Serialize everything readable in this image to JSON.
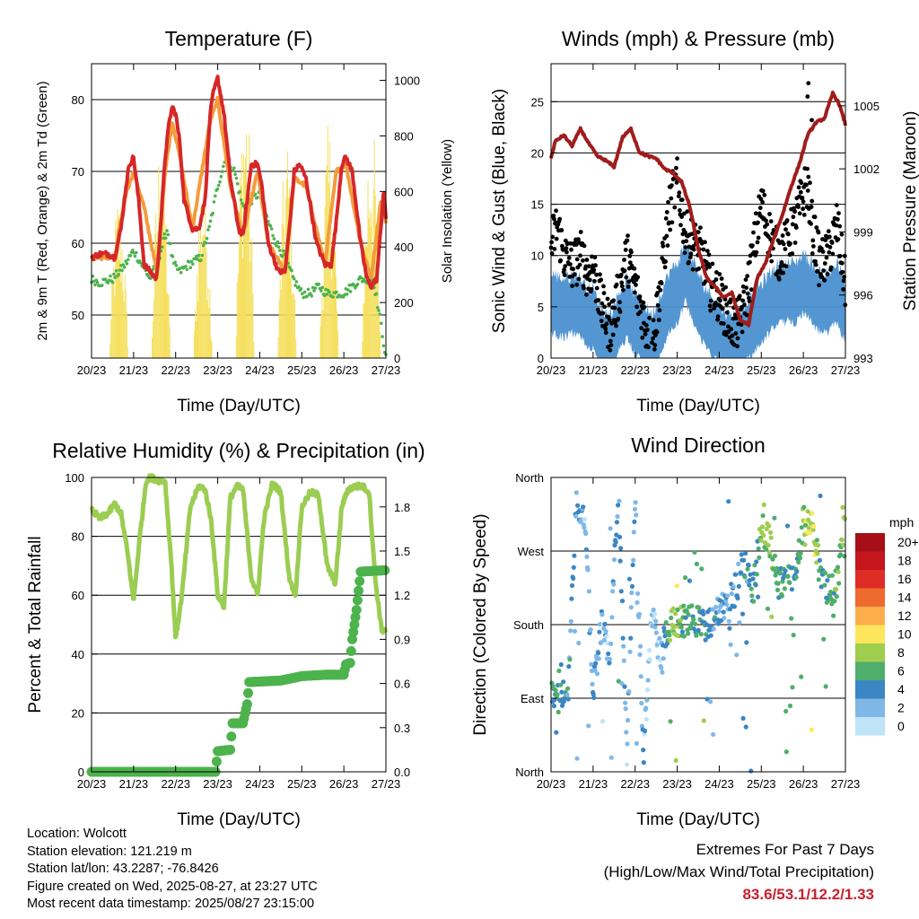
{
  "panels": {
    "temperature": {
      "title": "Temperature (F)",
      "ylabel_left": "2m & 9m T (Red, Orange) & 2m Td (Green)",
      "ylabel_right": "Solar Insolation (Yellow)",
      "xlabel": "Time (Day/UTC)"
    },
    "winds": {
      "title": "Winds (mph) & Pressure (mb)",
      "ylabel_left": "Sonic Wind & Gust (Blue, Black)",
      "ylabel_right": "Station Pressure (Maroon)",
      "xlabel": "Time (Day/UTC)"
    },
    "humidity": {
      "title": "Relative Humidity (%) & Precipitation (in)",
      "ylabel_left": "Percent & Total Rainfall",
      "xlabel": "Time (Day/UTC)"
    },
    "wind_direction": {
      "title": "Wind Direction",
      "ylabel_left": "Direction (Colored By Speed)",
      "xlabel": "Time (Day/UTC)",
      "legend_title": "mph"
    }
  },
  "info": {
    "location": "Location: Wolcott",
    "elevation": "Station elevation: 121.219 m",
    "latlon": "Station lat/lon: 43.2287; -76.8426",
    "created": "Figure created on Wed, 2025-08-27, at 23:27 UTC",
    "recent": "Most recent data timestamp: 2025/08/27 23:15:00"
  },
  "extremes": {
    "heading": "Extremes For Past 7 Days",
    "subheading": "(High/Low/Max Wind/Total Precipitation)",
    "values": "83.6/53.1/12.2/1.33"
  },
  "colors": {
    "temp_2m": "#d62728",
    "temp_9m": "#f39c3c",
    "dewpoint": "#4db34d",
    "solar": "#f5df5a",
    "wind": "#4a90d0",
    "gust": "#000000",
    "pressure": "#a01c1c",
    "rh": "#9acd52",
    "rain": "#4db34d"
  },
  "chart_data": [
    {
      "type": "line",
      "title": "Temperature (F)",
      "xlabel": "Time (Day/UTC)",
      "ylabel": "2m & 9m T (Red, Orange) & 2m Td (Green)",
      "y2label": "Solar Insolation (Yellow)",
      "x_ticks": [
        "20/23",
        "21/23",
        "22/23",
        "23/23",
        "24/23",
        "25/23",
        "26/23",
        "27/23"
      ],
      "xlim": [
        0,
        7
      ],
      "ylim": [
        44,
        85
      ],
      "y_ticks": [
        50,
        60,
        70,
        80
      ],
      "y2lim": [
        0,
        1060
      ],
      "y2_ticks": [
        0,
        200,
        400,
        600,
        800,
        1000
      ],
      "grid": "horizontal",
      "series": [
        {
          "name": "2m T",
          "color": "#d62728",
          "x": [
            0,
            0.2,
            0.4,
            0.55,
            0.7,
            0.82,
            0.9,
            1.0,
            1.12,
            1.25,
            1.4,
            1.55,
            1.65,
            1.75,
            1.85,
            1.92,
            2.0,
            2.1,
            2.2,
            2.4,
            2.55,
            2.7,
            2.82,
            2.9,
            3.0,
            3.15,
            3.3,
            3.5,
            3.6,
            3.7,
            3.8,
            3.95,
            4.05,
            4.2,
            4.45,
            4.6,
            4.72,
            4.82,
            4.95,
            5.1,
            5.35,
            5.55,
            5.7,
            5.82,
            5.95,
            6.05,
            6.2,
            6.4,
            6.55,
            6.65,
            6.78,
            6.88,
            6.95,
            7.0
          ],
          "y": [
            58,
            58.5,
            58.5,
            58,
            62,
            68,
            71,
            72,
            66,
            57,
            56,
            55,
            63,
            72,
            77,
            79,
            78,
            74,
            66,
            62,
            62,
            66,
            78,
            81,
            83,
            78,
            69,
            62,
            61,
            66,
            71,
            71,
            68,
            60,
            56,
            56,
            63,
            70,
            71,
            69,
            60,
            57,
            57,
            63,
            71,
            72,
            70,
            60,
            55,
            54,
            55,
            62,
            68,
            63
          ]
        },
        {
          "name": "9m T",
          "color": "#f39c3c",
          "x": [
            0,
            0.55,
            0.82,
            1.0,
            1.25,
            1.55,
            1.75,
            1.92,
            2.1,
            2.4,
            2.82,
            3.0,
            3.3,
            3.6,
            3.95,
            4.2,
            4.6,
            4.82,
            5.1,
            5.55,
            5.82,
            6.05,
            6.4,
            6.65,
            6.88,
            7.0
          ],
          "y": [
            58,
            58,
            67,
            70,
            65,
            56,
            70,
            77,
            72,
            62,
            77,
            80,
            68,
            61,
            70,
            60,
            56,
            69,
            68,
            57,
            70,
            71,
            60,
            55,
            66,
            63
          ]
        },
        {
          "name": "2m Td",
          "color": "#4db34d",
          "x": [
            0,
            0.2,
            0.5,
            0.8,
            1.0,
            1.2,
            1.4,
            1.6,
            1.8,
            1.95,
            2.1,
            2.3,
            2.6,
            2.8,
            3.0,
            3.2,
            3.4,
            3.6,
            3.8,
            4.0,
            4.2,
            4.4,
            4.6,
            4.8,
            5.0,
            5.2,
            5.4,
            5.6,
            5.8,
            6.0,
            6.2,
            6.4,
            6.55,
            6.7,
            6.85,
            7.0
          ],
          "y": [
            55,
            54.5,
            55,
            57,
            59,
            57,
            55,
            58,
            62,
            57,
            56,
            57,
            58,
            62,
            68,
            72,
            70,
            65,
            66,
            67,
            63,
            60,
            58,
            55,
            53,
            53,
            54,
            53,
            53,
            53,
            54,
            55,
            55,
            55,
            50,
            44
          ]
        },
        {
          "name": "Solar Insolation",
          "color": "#f5df5a",
          "axis": "right",
          "days": [
            0,
            1,
            2,
            3,
            4,
            5,
            6
          ],
          "peaks": [
            620,
            840,
            730,
            1060,
            820,
            860,
            930
          ]
        }
      ]
    },
    {
      "type": "scatter",
      "title": "Winds (mph) & Pressure (mb)",
      "xlabel": "Time (Day/UTC)",
      "ylabel": "Sonic Wind & Gust (Blue, Black)",
      "y2label": "Station Pressure (Maroon)",
      "x_ticks": [
        "20/23",
        "21/23",
        "22/23",
        "23/23",
        "24/23",
        "25/23",
        "26/23",
        "27/23"
      ],
      "xlim": [
        0,
        7
      ],
      "ylim": [
        0,
        28.7
      ],
      "y_ticks": [
        0,
        5,
        10,
        15,
        20,
        25
      ],
      "y2lim": [
        993,
        1007
      ],
      "y2_ticks": [
        993,
        996,
        999,
        1002,
        1005
      ],
      "grid": "horizontal",
      "series": [
        {
          "name": "Sonic Wind",
          "color": "#4a90d0",
          "x": [
            0,
            0.3,
            0.6,
            0.9,
            1.0,
            1.2,
            1.4,
            1.6,
            1.8,
            2.0,
            2.2,
            2.4,
            2.6,
            2.8,
            3.0,
            3.2,
            3.4,
            3.6,
            3.8,
            4.0,
            4.2,
            4.4,
            4.6,
            4.8,
            5.0,
            5.2,
            5.4,
            5.6,
            5.8,
            6.0,
            6.2,
            6.4,
            6.6,
            6.8,
            7.0
          ],
          "y": [
            5,
            4.5,
            5,
            3.5,
            3.5,
            1.5,
            1,
            3,
            4.5,
            3,
            2,
            1,
            3,
            5,
            6,
            8,
            6,
            4,
            3,
            2,
            1,
            1,
            2,
            3,
            4,
            5,
            6,
            6,
            6,
            7,
            6,
            5,
            5,
            6,
            4
          ]
        },
        {
          "name": "Gust",
          "color": "#000000",
          "x": [
            0,
            0.15,
            0.3,
            0.5,
            0.7,
            0.9,
            1.0,
            1.2,
            1.4,
            1.6,
            1.8,
            2.0,
            2.2,
            2.4,
            2.6,
            2.8,
            2.9,
            3.0,
            3.2,
            3.4,
            3.6,
            3.8,
            4.0,
            4.2,
            4.4,
            4.6,
            4.8,
            5.0,
            5.2,
            5.4,
            5.6,
            5.8,
            6.0,
            6.1,
            6.2,
            6.4,
            6.6,
            6.8,
            7.0
          ],
          "y": [
            11,
            13,
            10,
            9,
            10,
            8,
            9,
            5,
            3,
            6,
            10,
            7,
            4,
            1,
            7,
            14,
            16,
            17,
            12,
            11,
            10,
            7,
            6,
            4,
            3,
            5,
            10,
            15,
            12,
            10,
            11,
            13,
            16,
            17,
            13,
            9,
            10,
            13,
            7
          ]
        },
        {
          "name": "Station Pressure",
          "color": "#a01c1c",
          "axis": "right",
          "x": [
            0,
            0.1,
            0.3,
            0.5,
            0.7,
            0.9,
            1.1,
            1.3,
            1.5,
            1.7,
            1.9,
            2.1,
            2.3,
            2.5,
            2.7,
            2.9,
            3.1,
            3.3,
            3.5,
            3.7,
            3.9,
            4.1,
            4.3,
            4.5,
            4.7,
            4.9,
            5.1,
            5.3,
            5.5,
            5.7,
            5.9,
            6.1,
            6.3,
            6.5,
            6.7,
            6.85,
            7.0
          ],
          "y": [
            1002.5,
            1003.3,
            1003.6,
            1003.1,
            1003.9,
            1003.2,
            1002.6,
            1002.4,
            1002.1,
            1003.5,
            1003.9,
            1002.8,
            1002.6,
            1002.5,
            1002.0,
            1001.8,
            1001.4,
            1000.2,
            998.2,
            996.8,
            996.4,
            995.9,
            996.1,
            994.8,
            994.6,
            996.8,
            997.5,
            998.7,
            999.8,
            1001.1,
            1002.2,
            1003.6,
            1004.2,
            1004.4,
            1005.6,
            1005.1,
            1004.1
          ]
        }
      ]
    },
    {
      "type": "line",
      "title": "Relative Humidity (%) & Precipitation (in)",
      "xlabel": "Time (Day/UTC)",
      "ylabel": "Percent & Total Rainfall",
      "x_ticks": [
        "20/23",
        "21/23",
        "22/23",
        "23/23",
        "24/23",
        "25/23",
        "26/23",
        "27/23"
      ],
      "xlim": [
        0,
        7
      ],
      "ylim": [
        0,
        100
      ],
      "y_ticks": [
        0,
        20,
        40,
        60,
        80,
        100
      ],
      "y2lim": [
        0,
        2.0
      ],
      "y2_ticks": [
        0.0,
        0.3,
        0.6,
        0.9,
        1.2,
        1.5,
        1.8
      ],
      "grid": "horizontal",
      "series": [
        {
          "name": "Relative Humidity",
          "color": "#9acd52",
          "x": [
            0,
            0.2,
            0.4,
            0.55,
            0.7,
            0.85,
            1.0,
            1.15,
            1.3,
            1.4,
            1.6,
            1.75,
            1.9,
            2.0,
            2.15,
            2.35,
            2.55,
            2.7,
            2.85,
            3.0,
            3.15,
            3.3,
            3.45,
            3.6,
            3.8,
            3.95,
            4.1,
            4.3,
            4.5,
            4.7,
            4.85,
            5.0,
            5.2,
            5.4,
            5.6,
            5.8,
            5.95,
            6.1,
            6.3,
            6.45,
            6.6,
            6.75,
            6.9,
            7.0
          ],
          "y": [
            89,
            86,
            88,
            91,
            88,
            75,
            58,
            80,
            99,
            100,
            99,
            99,
            70,
            45,
            60,
            90,
            97,
            96,
            85,
            60,
            56,
            93,
            97,
            96,
            66,
            60,
            86,
            98,
            95,
            66,
            60,
            90,
            95,
            94,
            70,
            64,
            90,
            96,
            97,
            97,
            95,
            65,
            48,
            48
          ]
        },
        {
          "name": "Total Rainfall",
          "color": "#4db34d",
          "axis": "right",
          "x": [
            0,
            2.95,
            3.0,
            3.3,
            3.35,
            3.6,
            3.7,
            3.75,
            4.5,
            5.0,
            5.6,
            6.0,
            6.05,
            6.15,
            6.2,
            6.3,
            6.4,
            7.0
          ],
          "y": [
            0,
            0,
            0.14,
            0.15,
            0.33,
            0.33,
            0.46,
            0.61,
            0.62,
            0.65,
            0.66,
            0.66,
            0.73,
            0.74,
            0.9,
            1.1,
            1.36,
            1.37
          ]
        }
      ]
    },
    {
      "type": "scatter",
      "title": "Wind Direction",
      "xlabel": "Time (Day/UTC)",
      "ylabel": "Direction (Colored By Speed)",
      "x_ticks": [
        "20/23",
        "21/23",
        "22/23",
        "23/23",
        "24/23",
        "25/23",
        "26/23",
        "27/23"
      ],
      "xlim": [
        0,
        7
      ],
      "ylim": [
        0,
        360
      ],
      "y_ticks": [
        "North",
        "East",
        "South",
        "West",
        "North"
      ],
      "y_tick_values": [
        0,
        90,
        180,
        270,
        360
      ],
      "grid": "horizontal",
      "legend": {
        "title": "mph",
        "position": "right",
        "labels": [
          "20+",
          "18",
          "16",
          "14",
          "12",
          "10",
          "8",
          "6",
          "4",
          "2",
          "0"
        ],
        "colors": [
          "#a50f15",
          "#c4161c",
          "#de2d26",
          "#ef6a2e",
          "#fdae4b",
          "#fee65c",
          "#9fcd4e",
          "#4fae6b",
          "#3b86c4",
          "#7fb8e6",
          "#bfe4fa"
        ]
      },
      "series": [
        {
          "name": "Direction",
          "x": [
            0,
            0.2,
            0.4,
            0.6,
            0.8,
            1.0,
            1.2,
            1.4,
            1.6,
            1.8,
            2.0,
            2.2,
            2.4,
            2.6,
            2.8,
            3.0,
            3.2,
            3.4,
            3.6,
            3.8,
            4.0,
            4.2,
            4.4,
            4.6,
            4.8,
            5.0,
            5.2,
            5.4,
            5.6,
            5.8,
            6.0,
            6.2,
            6.4,
            6.6,
            6.8,
            7.0
          ],
          "y": [
            90,
            90,
            95,
            330,
            310,
            100,
            180,
            140,
            350,
            20,
            330,
            20,
            200,
            140,
            180,
            185,
            185,
            185,
            180,
            180,
            200,
            200,
            225,
            260,
            220,
            300,
            280,
            230,
            240,
            230,
            310,
            310,
            240,
            220,
            230,
            310
          ],
          "speed": [
            5,
            5,
            4,
            3,
            2,
            3,
            2,
            2,
            4,
            2,
            3,
            2,
            1,
            2,
            6,
            8,
            5,
            6,
            6,
            4,
            3,
            3,
            3,
            4,
            4,
            7,
            8,
            5,
            5,
            5,
            8,
            9,
            6,
            5,
            7,
            6
          ]
        }
      ]
    }
  ]
}
